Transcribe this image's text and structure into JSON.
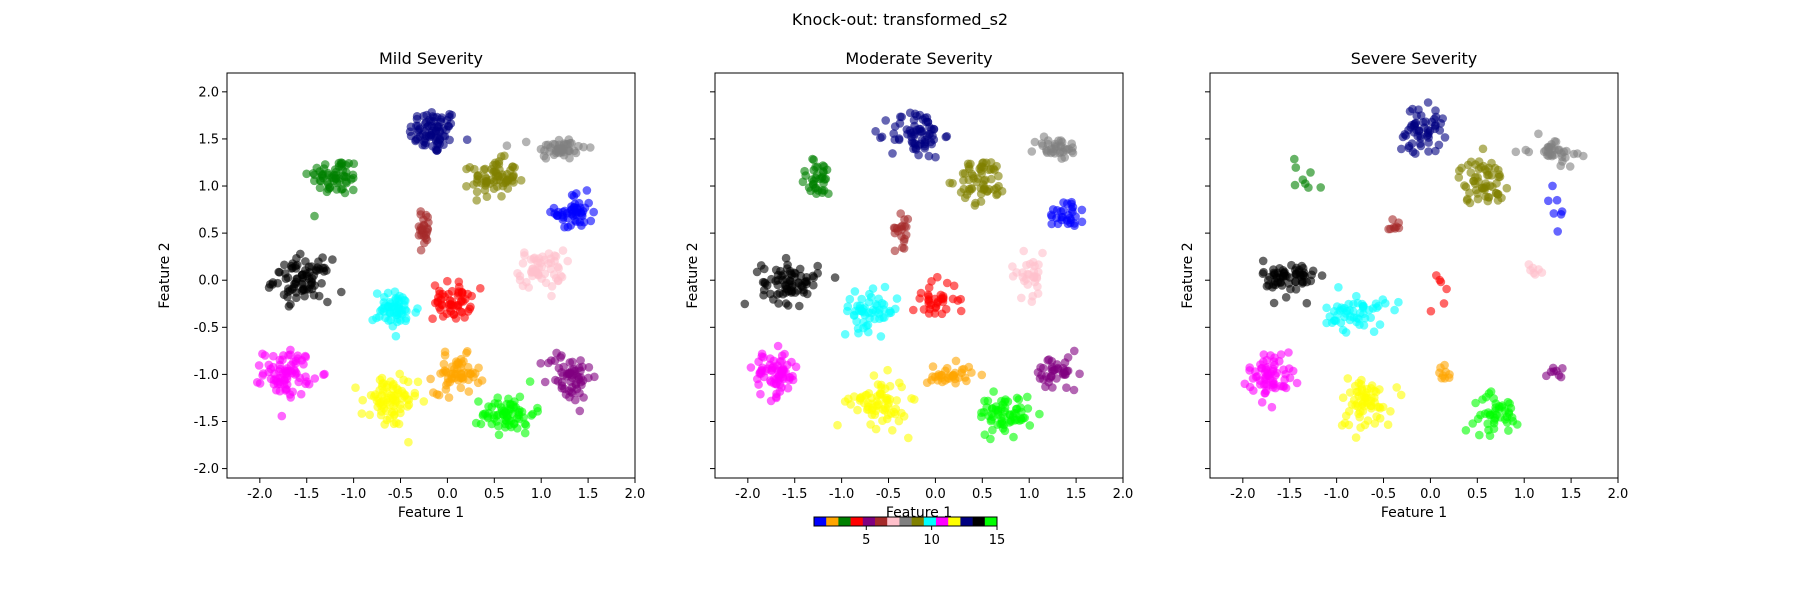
{
  "figure": {
    "suptitle": "Knock-out: transformed_s2"
  },
  "colorbar": {
    "colors": [
      "#0000ff",
      "#ffa500",
      "#008000",
      "#ff0000",
      "#800080",
      "#a52a2a",
      "#ffc0cb",
      "#808080",
      "#808000",
      "#00ffff",
      "#ff00ff",
      "#ffff00",
      "#000080",
      "#000000",
      "#00ff00"
    ],
    "ticks": [
      "5",
      "10",
      "15"
    ],
    "range": [
      1,
      15
    ]
  },
  "chart_data": [
    {
      "type": "scatter",
      "title": "Mild Severity",
      "xlabel": "Feature 1",
      "ylabel": "Feature 2",
      "xlim": [
        -2.35,
        2.0
      ],
      "ylim": [
        -2.1,
        2.2
      ],
      "xticks": [
        "-2.0",
        "-1.5",
        "-1.0",
        "-0.5",
        "0.0",
        "0.5",
        "1.0",
        "1.5",
        "2.0"
      ],
      "yticks": [
        "-2.0",
        "-1.5",
        "-1.0",
        "-0.5",
        "0.0",
        "0.5",
        "1.0",
        "1.5",
        "2.0"
      ],
      "show_ylabel": true,
      "clusters": [
        {
          "color": "#000080",
          "cx": -0.15,
          "cy": 1.58,
          "sx": 0.13,
          "sy": 0.12,
          "n": 80
        },
        {
          "color": "#808080",
          "cx": 1.2,
          "cy": 1.4,
          "sx": 0.14,
          "sy": 0.06,
          "n": 45
        },
        {
          "color": "#008000",
          "cx": -1.2,
          "cy": 1.1,
          "sx": 0.14,
          "sy": 0.1,
          "n": 60
        },
        {
          "color": "#808000",
          "cx": 0.5,
          "cy": 1.08,
          "sx": 0.12,
          "sy": 0.1,
          "n": 70
        },
        {
          "color": "#0000ff",
          "cx": 1.35,
          "cy": 0.72,
          "sx": 0.1,
          "sy": 0.1,
          "n": 50
        },
        {
          "color": "#a52a2a",
          "cx": -0.25,
          "cy": 0.55,
          "sx": 0.04,
          "sy": 0.1,
          "n": 25
        },
        {
          "color": "#ffc0cb",
          "cx": 1.0,
          "cy": 0.12,
          "sx": 0.12,
          "sy": 0.1,
          "n": 55
        },
        {
          "color": "#000000",
          "cx": -1.55,
          "cy": 0.0,
          "sx": 0.15,
          "sy": 0.11,
          "n": 80
        },
        {
          "color": "#00ffff",
          "cx": -0.55,
          "cy": -0.32,
          "sx": 0.12,
          "sy": 0.1,
          "n": 60
        },
        {
          "color": "#ff0000",
          "cx": 0.05,
          "cy": -0.22,
          "sx": 0.1,
          "sy": 0.1,
          "n": 55
        },
        {
          "color": "#ff00ff",
          "cx": -1.7,
          "cy": -0.98,
          "sx": 0.13,
          "sy": 0.12,
          "n": 80
        },
        {
          "color": "#ffff00",
          "cx": -0.62,
          "cy": -1.3,
          "sx": 0.15,
          "sy": 0.14,
          "n": 80
        },
        {
          "color": "#ffa500",
          "cx": 0.1,
          "cy": -1.0,
          "sx": 0.12,
          "sy": 0.1,
          "n": 60
        },
        {
          "color": "#800080",
          "cx": 1.3,
          "cy": -1.02,
          "sx": 0.12,
          "sy": 0.14,
          "n": 60
        },
        {
          "color": "#00ff00",
          "cx": 0.65,
          "cy": -1.42,
          "sx": 0.14,
          "sy": 0.1,
          "n": 70
        }
      ]
    },
    {
      "type": "scatter",
      "title": "Moderate Severity",
      "xlabel": "Feature 1",
      "ylabel": "Feature 2",
      "xlim": [
        -2.35,
        2.0
      ],
      "ylim": [
        -2.1,
        2.2
      ],
      "xticks": [
        "-2.0",
        "-1.5",
        "-1.0",
        "-0.5",
        "0.0",
        "0.5",
        "1.0",
        "1.5",
        "2.0"
      ],
      "yticks": [
        "",
        "",
        "",
        "",
        "",
        "",
        "",
        "",
        ""
      ],
      "show_ylabel": true,
      "clusters": [
        {
          "color": "#000080",
          "cx": -0.2,
          "cy": 1.55,
          "sx": 0.14,
          "sy": 0.13,
          "n": 70
        },
        {
          "color": "#808080",
          "cx": 1.3,
          "cy": 1.4,
          "sx": 0.12,
          "sy": 0.06,
          "n": 35
        },
        {
          "color": "#008000",
          "cx": -1.25,
          "cy": 1.08,
          "sx": 0.1,
          "sy": 0.1,
          "n": 35
        },
        {
          "color": "#808000",
          "cx": 0.5,
          "cy": 1.05,
          "sx": 0.13,
          "sy": 0.12,
          "n": 60
        },
        {
          "color": "#0000ff",
          "cx": 1.4,
          "cy": 0.72,
          "sx": 0.1,
          "sy": 0.09,
          "n": 30
        },
        {
          "color": "#a52a2a",
          "cx": -0.35,
          "cy": 0.55,
          "sx": 0.04,
          "sy": 0.1,
          "n": 20
        },
        {
          "color": "#ffc0cb",
          "cx": 1.0,
          "cy": 0.05,
          "sx": 0.1,
          "sy": 0.12,
          "n": 30
        },
        {
          "color": "#000000",
          "cx": -1.55,
          "cy": -0.02,
          "sx": 0.15,
          "sy": 0.11,
          "n": 75
        },
        {
          "color": "#00ffff",
          "cx": -0.7,
          "cy": -0.33,
          "sx": 0.15,
          "sy": 0.1,
          "n": 55
        },
        {
          "color": "#ff0000",
          "cx": 0.0,
          "cy": -0.2,
          "sx": 0.12,
          "sy": 0.1,
          "n": 35
        },
        {
          "color": "#ff00ff",
          "cx": -1.7,
          "cy": -1.0,
          "sx": 0.12,
          "sy": 0.12,
          "n": 70
        },
        {
          "color": "#ffff00",
          "cx": -0.6,
          "cy": -1.3,
          "sx": 0.15,
          "sy": 0.13,
          "n": 70
        },
        {
          "color": "#ffa500",
          "cx": 0.15,
          "cy": -1.0,
          "sx": 0.12,
          "sy": 0.06,
          "n": 35
        },
        {
          "color": "#800080",
          "cx": 1.3,
          "cy": -1.0,
          "sx": 0.12,
          "sy": 0.1,
          "n": 40
        },
        {
          "color": "#00ff00",
          "cx": 0.75,
          "cy": -1.42,
          "sx": 0.14,
          "sy": 0.1,
          "n": 65
        }
      ]
    },
    {
      "type": "scatter",
      "title": "Severe Severity",
      "xlabel": "Feature 1",
      "ylabel": "Feature 2",
      "xlim": [
        -2.35,
        2.0
      ],
      "ylim": [
        -2.1,
        2.2
      ],
      "xticks": [
        "-2.0",
        "-1.5",
        "-1.0",
        "-0.5",
        "0.0",
        "0.5",
        "1.0",
        "1.5",
        "2.0"
      ],
      "yticks": [
        "",
        "",
        "",
        "",
        "",
        "",
        "",
        "",
        ""
      ],
      "show_ylabel": true,
      "clusters": [
        {
          "color": "#000080",
          "cx": -0.1,
          "cy": 1.6,
          "sx": 0.12,
          "sy": 0.12,
          "n": 55
        },
        {
          "color": "#808080",
          "cx": 1.3,
          "cy": 1.38,
          "sx": 0.13,
          "sy": 0.07,
          "n": 35
        },
        {
          "color": "#008000",
          "cx": -1.3,
          "cy": 1.1,
          "sx": 0.1,
          "sy": 0.12,
          "n": 8
        },
        {
          "color": "#808000",
          "cx": 0.55,
          "cy": 1.05,
          "sx": 0.12,
          "sy": 0.12,
          "n": 60
        },
        {
          "color": "#0000ff",
          "cx": 1.35,
          "cy": 0.8,
          "sx": 0.05,
          "sy": 0.12,
          "n": 7
        },
        {
          "color": "#a52a2a",
          "cx": -0.4,
          "cy": 0.57,
          "sx": 0.04,
          "sy": 0.05,
          "n": 8
        },
        {
          "color": "#ffc0cb",
          "cx": 1.1,
          "cy": 0.1,
          "sx": 0.12,
          "sy": 0.05,
          "n": 7
        },
        {
          "color": "#000000",
          "cx": -1.5,
          "cy": 0.02,
          "sx": 0.14,
          "sy": 0.1,
          "n": 65
        },
        {
          "color": "#00ffff",
          "cx": -0.8,
          "cy": -0.35,
          "sx": 0.16,
          "sy": 0.1,
          "n": 55
        },
        {
          "color": "#ff0000",
          "cx": 0.1,
          "cy": -0.15,
          "sx": 0.06,
          "sy": 0.12,
          "n": 6
        },
        {
          "color": "#ff00ff",
          "cx": -1.7,
          "cy": -1.0,
          "sx": 0.12,
          "sy": 0.12,
          "n": 65
        },
        {
          "color": "#ffff00",
          "cx": -0.7,
          "cy": -1.3,
          "sx": 0.14,
          "sy": 0.14,
          "n": 65
        },
        {
          "color": "#ffa500",
          "cx": 0.1,
          "cy": -0.98,
          "sx": 0.08,
          "sy": 0.05,
          "n": 9
        },
        {
          "color": "#800080",
          "cx": 1.35,
          "cy": -1.0,
          "sx": 0.1,
          "sy": 0.06,
          "n": 8
        },
        {
          "color": "#00ff00",
          "cx": 0.7,
          "cy": -1.42,
          "sx": 0.12,
          "sy": 0.1,
          "n": 45
        }
      ]
    }
  ]
}
